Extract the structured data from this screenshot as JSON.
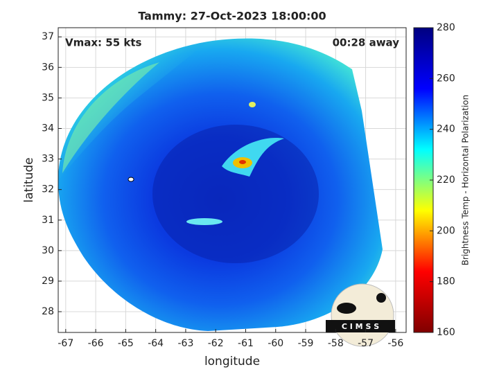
{
  "chart_data": {
    "type": "heatmap",
    "title": "Tammy: 27-Oct-2023 18:00:00",
    "xlabel": "longitude",
    "ylabel": "latitude",
    "annotations": [
      "Vmax: 55 kts",
      "00:28 away"
    ],
    "logo_text": "C I M S S",
    "xlim": [
      -67.25,
      -55.65
    ],
    "ylim": [
      27.32,
      37.3
    ],
    "xticks": [
      -67,
      -66,
      -65,
      -64,
      -63,
      -62,
      -61,
      -60,
      -59,
      -58,
      -57,
      -56
    ],
    "yticks": [
      28,
      29,
      30,
      31,
      32,
      33,
      34,
      35,
      36,
      37
    ],
    "grid": true,
    "colorbar": {
      "label": "Brightness Temp - Horizontal Polarization",
      "lim": [
        160,
        280
      ],
      "ticks": [
        160,
        180,
        200,
        220,
        240,
        260,
        280
      ],
      "colors": [
        "#800000",
        "#ff0000",
        "#ffff00",
        "#00ffff",
        "#0000ff",
        "#000080"
      ]
    }
  }
}
